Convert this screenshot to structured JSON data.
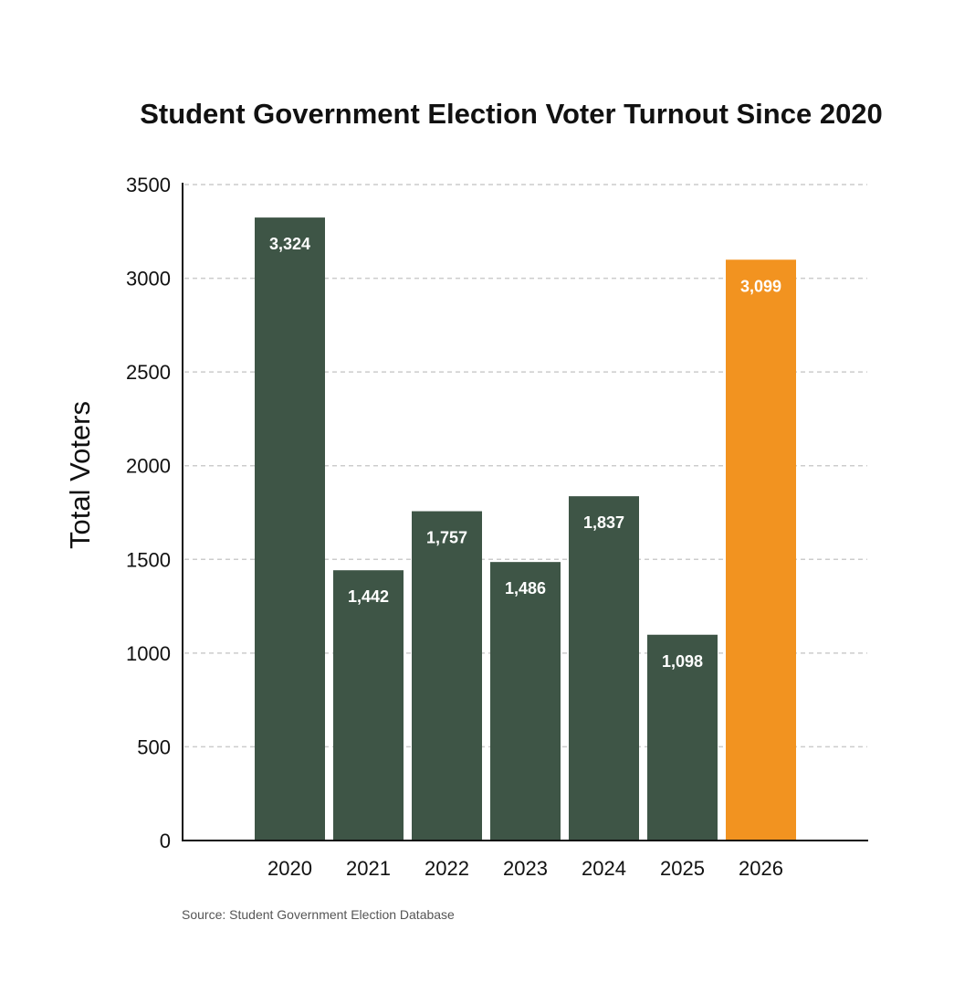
{
  "chart_data": {
    "type": "bar",
    "title": "Student Government Election Voter Turnout Since 2020",
    "xlabel": "",
    "ylabel": "Total Voters",
    "categories": [
      "2020",
      "2021",
      "2022",
      "2023",
      "2024",
      "2025",
      "2026"
    ],
    "values": [
      3324,
      1442,
      1757,
      1486,
      1837,
      1098,
      3099
    ],
    "data_labels": [
      "3,324",
      "1,442",
      "1,757",
      "1,486",
      "1,837",
      "1,098",
      "3,099"
    ],
    "ylim": [
      0,
      3500
    ],
    "yticks": [
      "0",
      "500",
      "1000",
      "1500",
      "2000",
      "2500",
      "3000",
      "3500"
    ],
    "grid": true,
    "bar_colors": [
      "#3e5546",
      "#3e5546",
      "#3e5546",
      "#3e5546",
      "#3e5546",
      "#3e5546",
      "#f29320"
    ],
    "source": "Source: Student Government Election Database"
  }
}
